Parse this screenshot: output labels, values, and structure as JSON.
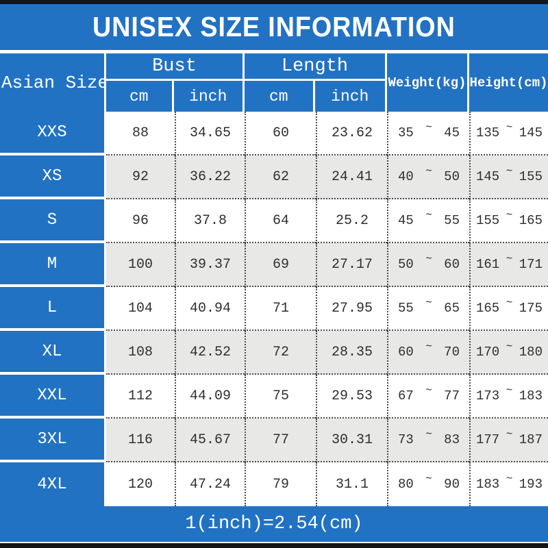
{
  "title": "UNISEX SIZE INFORMATION",
  "footer_note": "1(inch)=2.54(cm)",
  "range_separator": "~",
  "colors": {
    "blue": "#2272c3",
    "row_alt": "#e8e8e6",
    "bar_black": "#151515"
  },
  "table": {
    "corner_header": "Asian Size",
    "groups": [
      {
        "label": "Bust",
        "subs": [
          "cm",
          "inch"
        ]
      },
      {
        "label": "Length",
        "subs": [
          "cm",
          "inch"
        ]
      }
    ],
    "weight_header": "Weight(kg)",
    "height_header": "Height(cm)",
    "rows": [
      {
        "size": "XXS",
        "bust_cm": "88",
        "bust_inch": "34.65",
        "length_cm": "60",
        "length_inch": "23.62",
        "weight_min": "35",
        "weight_max": "45",
        "height_min": "135",
        "height_max": "145"
      },
      {
        "size": "XS",
        "bust_cm": "92",
        "bust_inch": "36.22",
        "length_cm": "62",
        "length_inch": "24.41",
        "weight_min": "40",
        "weight_max": "50",
        "height_min": "145",
        "height_max": "155"
      },
      {
        "size": "S",
        "bust_cm": "96",
        "bust_inch": "37.8",
        "length_cm": "64",
        "length_inch": "25.2",
        "weight_min": "45",
        "weight_max": "55",
        "height_min": "155",
        "height_max": "165"
      },
      {
        "size": "M",
        "bust_cm": "100",
        "bust_inch": "39.37",
        "length_cm": "69",
        "length_inch": "27.17",
        "weight_min": "50",
        "weight_max": "60",
        "height_min": "161",
        "height_max": "171"
      },
      {
        "size": "L",
        "bust_cm": "104",
        "bust_inch": "40.94",
        "length_cm": "71",
        "length_inch": "27.95",
        "weight_min": "55",
        "weight_max": "65",
        "height_min": "165",
        "height_max": "175"
      },
      {
        "size": "XL",
        "bust_cm": "108",
        "bust_inch": "42.52",
        "length_cm": "72",
        "length_inch": "28.35",
        "weight_min": "60",
        "weight_max": "70",
        "height_min": "170",
        "height_max": "180"
      },
      {
        "size": "XXL",
        "bust_cm": "112",
        "bust_inch": "44.09",
        "length_cm": "75",
        "length_inch": "29.53",
        "weight_min": "67",
        "weight_max": "77",
        "height_min": "173",
        "height_max": "183"
      },
      {
        "size": "3XL",
        "bust_cm": "116",
        "bust_inch": "45.67",
        "length_cm": "77",
        "length_inch": "30.31",
        "weight_min": "73",
        "weight_max": "83",
        "height_min": "177",
        "height_max": "187"
      },
      {
        "size": "4XL",
        "bust_cm": "120",
        "bust_inch": "47.24",
        "length_cm": "79",
        "length_inch": "31.1",
        "weight_min": "80",
        "weight_max": "90",
        "height_min": "183",
        "height_max": "193"
      }
    ]
  },
  "chart_data": {
    "type": "table",
    "title": "UNISEX SIZE INFORMATION",
    "columns": [
      "Asian Size",
      "Bust cm",
      "Bust inch",
      "Length cm",
      "Length inch",
      "Weight(kg)",
      "Height(cm)"
    ],
    "rows": [
      [
        "XXS",
        88,
        34.65,
        60,
        23.62,
        "35~45",
        "135~145"
      ],
      [
        "XS",
        92,
        36.22,
        62,
        24.41,
        "40~50",
        "145~155"
      ],
      [
        "S",
        96,
        37.8,
        64,
        25.2,
        "45~55",
        "155~165"
      ],
      [
        "M",
        100,
        39.37,
        69,
        27.17,
        "50~60",
        "161~171"
      ],
      [
        "L",
        104,
        40.94,
        71,
        27.95,
        "55~65",
        "165~175"
      ],
      [
        "XL",
        108,
        42.52,
        72,
        28.35,
        "60~70",
        "170~180"
      ],
      [
        "XXL",
        112,
        44.09,
        75,
        29.53,
        "67~77",
        "173~183"
      ],
      [
        "3XL",
        116,
        45.67,
        77,
        30.31,
        "73~83",
        "177~187"
      ],
      [
        "4XL",
        120,
        47.24,
        79,
        31.1,
        "80~90",
        "183~193"
      ]
    ],
    "note": "1(inch)=2.54(cm)"
  }
}
